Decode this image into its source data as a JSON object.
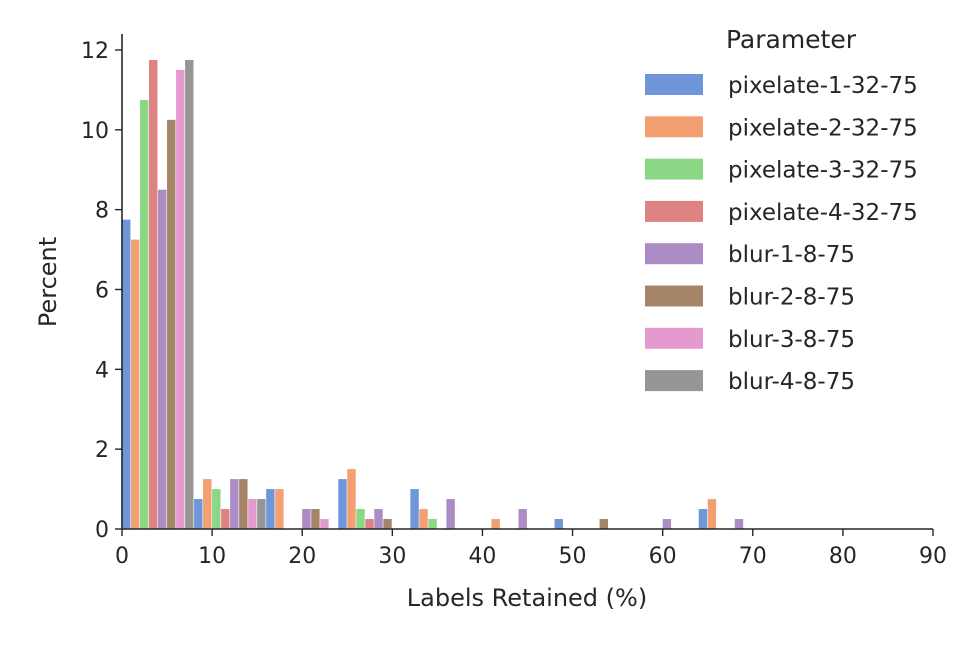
{
  "chart_data": {
    "type": "bar",
    "title": "",
    "xlabel": "Labels Retained (%)",
    "ylabel": "Percent",
    "xlim": [
      0,
      90
    ],
    "ylim": [
      0,
      12.4
    ],
    "xticks": [
      0,
      10,
      20,
      30,
      40,
      50,
      60,
      70,
      80,
      90
    ],
    "yticks": [
      0,
      2,
      4,
      6,
      8,
      10,
      12
    ],
    "grid": false,
    "bin_width": 8.0,
    "legend": {
      "title": "Parameter",
      "position": "top-right"
    },
    "series": [
      {
        "name": "pixelate-1-32-75",
        "color": "#4878d0",
        "points": [
          [
            0,
            7.75
          ],
          [
            8,
            0.75
          ],
          [
            16,
            1.0
          ],
          [
            24,
            1.25
          ],
          [
            32,
            1.0
          ],
          [
            48,
            0.25
          ],
          [
            64,
            0.5
          ]
        ]
      },
      {
        "name": "pixelate-2-32-75",
        "color": "#ee854a",
        "points": [
          [
            0,
            7.25
          ],
          [
            8,
            1.25
          ],
          [
            16,
            1.0
          ],
          [
            24,
            1.5
          ],
          [
            32,
            0.5
          ],
          [
            40,
            0.25
          ],
          [
            64,
            0.75
          ]
        ]
      },
      {
        "name": "pixelate-3-32-75",
        "color": "#6acc64",
        "points": [
          [
            0,
            10.75
          ],
          [
            8,
            1.0
          ],
          [
            24,
            0.5
          ],
          [
            32,
            0.25
          ]
        ]
      },
      {
        "name": "pixelate-4-32-75",
        "color": "#d65f5f",
        "points": [
          [
            0,
            11.75
          ],
          [
            8,
            0.5
          ],
          [
            24,
            0.25
          ]
        ]
      },
      {
        "name": "blur-1-8-75",
        "color": "#956cb4",
        "points": [
          [
            0,
            8.5
          ],
          [
            8,
            1.25
          ],
          [
            16,
            0.5
          ],
          [
            24,
            0.5
          ],
          [
            32,
            0.75
          ],
          [
            40,
            0.5
          ],
          [
            56,
            0.25
          ],
          [
            64,
            0.25
          ]
        ]
      },
      {
        "name": "blur-2-8-75",
        "color": "#8c613c",
        "points": [
          [
            0,
            10.25
          ],
          [
            8,
            1.25
          ],
          [
            16,
            0.5
          ],
          [
            24,
            0.25
          ],
          [
            48,
            0.25
          ]
        ]
      },
      {
        "name": "blur-3-8-75",
        "color": "#dc7ec0",
        "points": [
          [
            0,
            11.5
          ],
          [
            8,
            0.75
          ],
          [
            16,
            0.25
          ]
        ]
      },
      {
        "name": "blur-4-8-75",
        "color": "#797979",
        "points": [
          [
            0,
            11.75
          ],
          [
            8,
            0.75
          ]
        ]
      }
    ]
  }
}
